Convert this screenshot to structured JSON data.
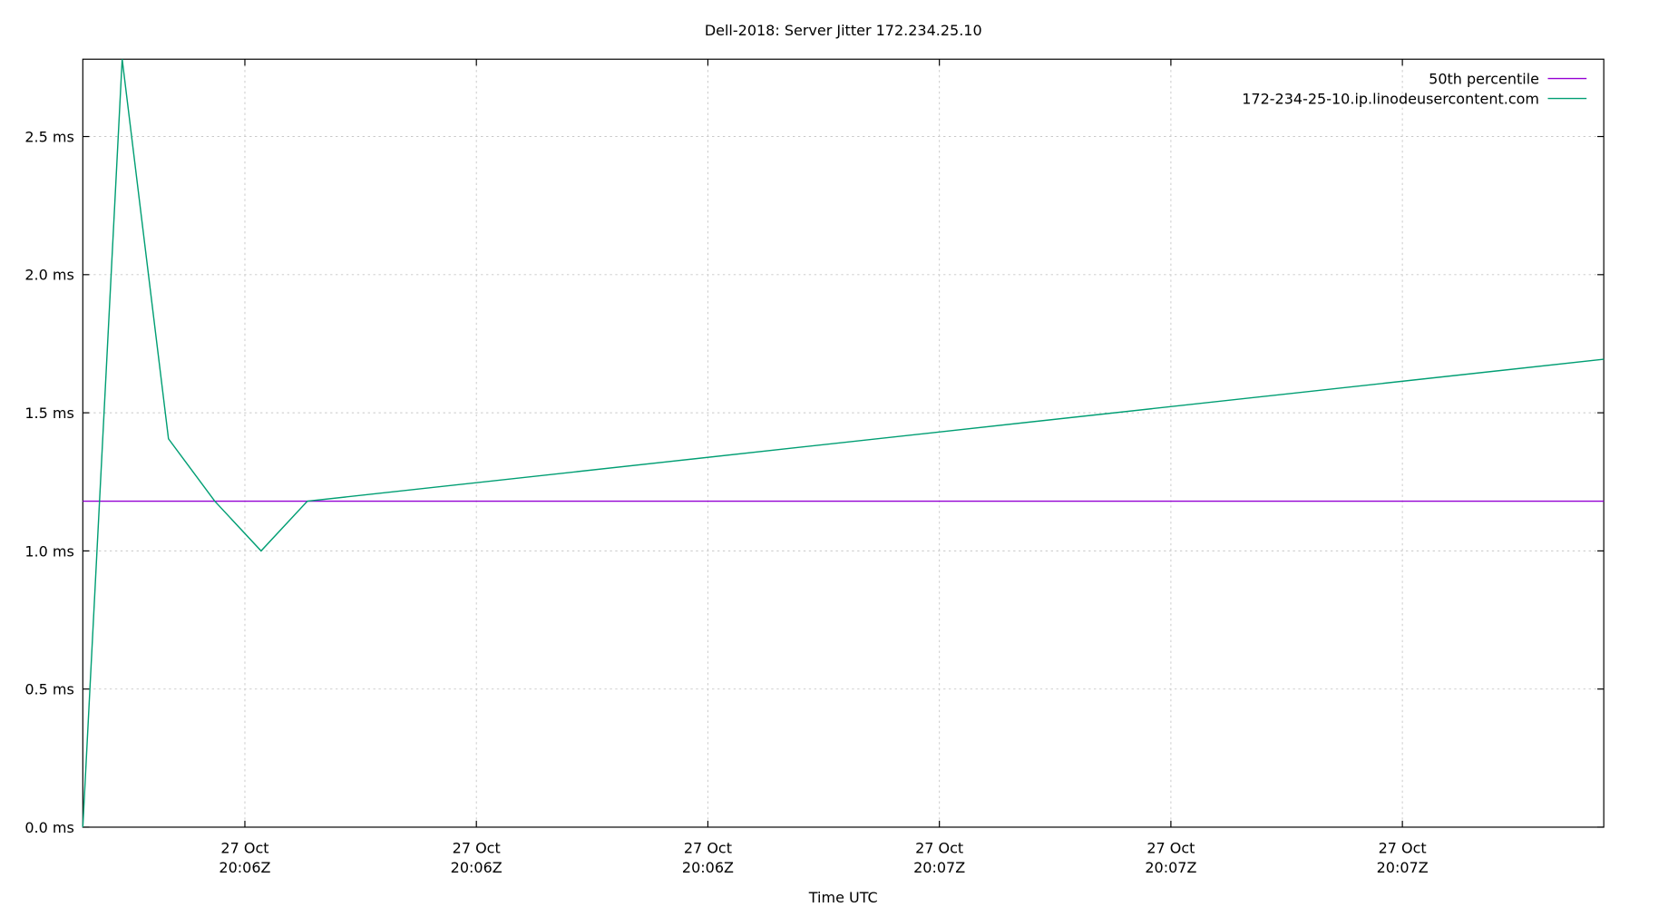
{
  "chart_data": {
    "type": "line",
    "title": "Dell-2018: Server Jitter 172.234.25.10",
    "x_label": "Time UTC",
    "xlim": [
      23,
      88.7
    ],
    "xticks": [
      {
        "value": 30,
        "label": "27 Oct\n20:06Z"
      },
      {
        "value": 40,
        "label": "27 Oct\n20:06Z"
      },
      {
        "value": 50,
        "label": "27 Oct\n20:06Z"
      },
      {
        "value": 60,
        "label": "27 Oct\n20:07Z"
      },
      {
        "value": 70,
        "label": "27 Oct\n20:07Z"
      },
      {
        "value": 80,
        "label": "27 Oct\n20:07Z"
      }
    ],
    "ylim": [
      0,
      2.78
    ],
    "yticks": [
      {
        "value": 0,
        "label": "0.0 ms"
      },
      {
        "value": 0.5,
        "label": "0.5 ms"
      },
      {
        "value": 1,
        "label": "1.0 ms"
      },
      {
        "value": 1.5,
        "label": "1.5 ms"
      },
      {
        "value": 2,
        "label": "2.0 ms"
      },
      {
        "value": 2.5,
        "label": "2.5 ms"
      }
    ],
    "grid": true,
    "legend": "top-right",
    "series": [
      {
        "name": "50th percentile",
        "color": "#9400d3",
        "x": [
          23,
          88.7
        ],
        "values": [
          1.18,
          1.18
        ]
      },
      {
        "name": "172-234-25-10.ip.linodeusercontent.com",
        "color": "#009e73",
        "x": [
          23,
          24.7,
          26.7,
          28.7,
          30.7,
          32.7,
          88.7
        ],
        "values": [
          0,
          2.78,
          1.406,
          1.18,
          1.0,
          1.18,
          1.694
        ]
      }
    ]
  }
}
